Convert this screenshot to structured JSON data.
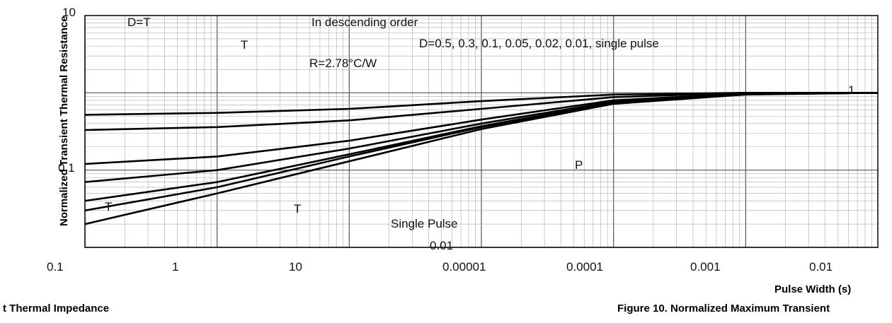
{
  "chart_data": {
    "type": "line",
    "title": "",
    "xlabel": "Pulse Width (s)",
    "ylabel": "Normalized Transient Thermal Resistance",
    "x_log": true,
    "y_log": true,
    "grid": true,
    "xlim": [
      1e-05,
      10
    ],
    "ylim": [
      0.01,
      10
    ],
    "x_ticks": [
      "0.00001",
      "0.0001",
      "0.001",
      "0.01",
      "0.1",
      "1",
      "10"
    ],
    "y_ticks": [
      "10",
      "1",
      "0.1",
      "0.01"
    ],
    "annotations": {
      "duty": "D=T",
      "order": "In descending order",
      "formula": "T",
      "d_values": "D=0.5, 0.3, 0.1, 0.05, 0.02, 0.01, single pulse",
      "rth": "R",
      "rth_value": "=2.78°C/W",
      "single_pulse": "Single Pulse",
      "pdm": "P",
      "ton": "T",
      "t": "T"
    },
    "series": [
      {
        "name": "D=0.5",
        "x": [
          1e-05,
          0.0001,
          0.001,
          0.01,
          0.1,
          1,
          10
        ],
        "y": [
          0.52,
          0.55,
          0.62,
          0.78,
          0.95,
          1.0,
          1.0
        ]
      },
      {
        "name": "D=0.3",
        "x": [
          1e-05,
          0.0001,
          0.001,
          0.01,
          0.1,
          1,
          10
        ],
        "y": [
          0.33,
          0.36,
          0.44,
          0.62,
          0.88,
          1.0,
          1.0
        ]
      },
      {
        "name": "D=0.1",
        "x": [
          1e-05,
          0.0001,
          0.001,
          0.01,
          0.1,
          1,
          10
        ],
        "y": [
          0.12,
          0.15,
          0.24,
          0.45,
          0.8,
          0.98,
          1.0
        ]
      },
      {
        "name": "D=0.05",
        "x": [
          1e-05,
          0.0001,
          0.001,
          0.01,
          0.1,
          1,
          10
        ],
        "y": [
          0.07,
          0.1,
          0.19,
          0.4,
          0.77,
          0.97,
          1.0
        ]
      },
      {
        "name": "D=0.02",
        "x": [
          1e-05,
          0.0001,
          0.001,
          0.01,
          0.1,
          1,
          10
        ],
        "y": [
          0.04,
          0.07,
          0.16,
          0.37,
          0.75,
          0.96,
          1.0
        ]
      },
      {
        "name": "D=0.01",
        "x": [
          1e-05,
          0.0001,
          0.001,
          0.01,
          0.1,
          1,
          10
        ],
        "y": [
          0.03,
          0.06,
          0.15,
          0.36,
          0.74,
          0.96,
          1.0
        ]
      },
      {
        "name": "single pulse",
        "x": [
          1e-05,
          0.0001,
          0.001,
          0.01,
          0.1,
          1,
          10
        ],
        "y": [
          0.02,
          0.05,
          0.13,
          0.34,
          0.72,
          0.95,
          1.0
        ]
      }
    ]
  },
  "page": {
    "figure_caption_left": "t Thermal Impedance",
    "figure_caption_right": "Figure 10. Normalized Maximum Transient"
  }
}
